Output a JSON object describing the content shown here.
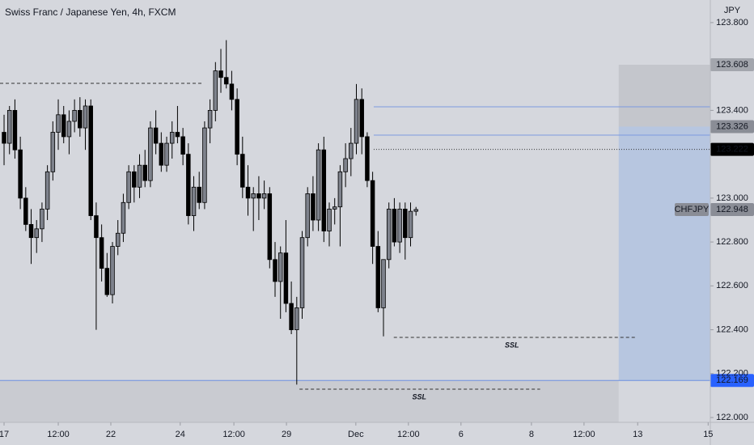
{
  "chart_data": {
    "type": "candlestick",
    "title": "Swiss Franc / Japanese Yen, 4h, FXCM",
    "y_axis_label": "JPY",
    "up_color": "#7e828c",
    "down_color": "#000000",
    "ylim": [
      121.978,
      123.903
    ],
    "yticks": [
      {
        "value": 123.8,
        "label": "123.800"
      },
      {
        "value": 123.4,
        "label": "123.400"
      },
      {
        "value": 123.0,
        "label": "123.000"
      },
      {
        "value": 122.8,
        "label": "122.800"
      },
      {
        "value": 122.6,
        "label": "122.600"
      },
      {
        "value": 122.4,
        "label": "122.400"
      },
      {
        "value": 122.2,
        "label": "122.200"
      },
      {
        "value": 122.0,
        "label": "122.000"
      }
    ],
    "xlim": [
      -0.75,
      130.3
    ],
    "xticks": [
      {
        "value": 0,
        "label": "17"
      },
      {
        "value": 10,
        "label": "12:00"
      },
      {
        "value": 19.7,
        "label": "22"
      },
      {
        "value": 32.5,
        "label": "24"
      },
      {
        "value": 42.4,
        "label": "12:00"
      },
      {
        "value": 52.1,
        "label": "29"
      },
      {
        "value": 64.9,
        "label": "Dec"
      },
      {
        "value": 74.6,
        "label": "12:00"
      },
      {
        "value": 84.3,
        "label": "6"
      },
      {
        "value": 97.3,
        "label": "8"
      },
      {
        "value": 107,
        "label": "12:00"
      },
      {
        "value": 116.9,
        "label": "13"
      },
      {
        "value": 129.9,
        "label": "15"
      }
    ],
    "candles": [
      [
        123.3,
        123.38,
        123.15,
        123.25
      ],
      [
        123.25,
        123.42,
        123.2,
        123.4
      ],
      [
        123.4,
        123.45,
        123.18,
        123.22
      ],
      [
        123.22,
        123.28,
        122.95,
        123.0
      ],
      [
        123.0,
        123.05,
        122.85,
        122.88
      ],
      [
        122.88,
        122.95,
        122.7,
        122.82
      ],
      [
        122.82,
        122.9,
        122.75,
        122.86
      ],
      [
        122.86,
        122.98,
        122.8,
        122.95
      ],
      [
        122.95,
        123.15,
        122.9,
        123.12
      ],
      [
        123.12,
        123.35,
        123.08,
        123.3
      ],
      [
        123.3,
        123.45,
        123.22,
        123.38
      ],
      [
        123.38,
        123.42,
        123.25,
        123.28
      ],
      [
        123.28,
        123.4,
        123.2,
        123.35
      ],
      [
        123.35,
        123.45,
        123.3,
        123.4
      ],
      [
        123.4,
        123.46,
        123.28,
        123.32
      ],
      [
        123.32,
        123.45,
        123.22,
        123.42
      ],
      [
        123.42,
        123.45,
        122.9,
        122.92
      ],
      [
        122.92,
        122.98,
        122.4,
        122.82
      ],
      [
        122.82,
        122.88,
        122.62,
        122.68
      ],
      [
        122.68,
        122.75,
        122.55,
        122.56
      ],
      [
        122.56,
        122.8,
        122.52,
        122.78
      ],
      [
        122.78,
        122.9,
        122.74,
        122.84
      ],
      [
        122.84,
        123.02,
        122.8,
        122.98
      ],
      [
        122.98,
        123.15,
        122.95,
        123.12
      ],
      [
        123.12,
        123.15,
        122.98,
        123.05
      ],
      [
        123.05,
        123.2,
        123.0,
        123.15
      ],
      [
        123.15,
        123.22,
        123.05,
        123.08
      ],
      [
        123.08,
        123.35,
        123.05,
        123.32
      ],
      [
        123.32,
        123.4,
        123.2,
        123.25
      ],
      [
        123.25,
        123.3,
        123.12,
        123.15
      ],
      [
        123.15,
        123.28,
        123.12,
        123.25
      ],
      [
        123.25,
        123.35,
        123.18,
        123.3
      ],
      [
        123.3,
        123.42,
        123.25,
        123.28
      ],
      [
        123.28,
        123.32,
        123.15,
        123.2
      ],
      [
        123.2,
        123.25,
        122.88,
        122.92
      ],
      [
        122.92,
        123.1,
        122.85,
        123.05
      ],
      [
        123.05,
        123.12,
        122.95,
        122.98
      ],
      [
        122.98,
        123.35,
        122.95,
        123.32
      ],
      [
        123.32,
        123.45,
        123.25,
        123.4
      ],
      [
        123.4,
        123.62,
        123.35,
        123.58
      ],
      [
        123.58,
        123.68,
        123.48,
        123.55
      ],
      [
        123.55,
        123.72,
        123.5,
        123.52
      ],
      [
        123.52,
        123.58,
        123.4,
        123.45
      ],
      [
        123.45,
        123.5,
        123.15,
        123.2
      ],
      [
        123.2,
        123.28,
        123.0,
        123.05
      ],
      [
        123.05,
        123.15,
        122.92,
        123.0
      ],
      [
        123.0,
        123.05,
        122.85,
        123.02
      ],
      [
        123.02,
        123.1,
        122.9,
        123.0
      ],
      [
        123.0,
        123.08,
        122.95,
        123.02
      ],
      [
        123.02,
        123.05,
        122.68,
        122.72
      ],
      [
        122.72,
        122.8,
        122.55,
        122.62
      ],
      [
        122.62,
        122.78,
        122.45,
        122.75
      ],
      [
        122.75,
        122.9,
        122.48,
        122.52
      ],
      [
        122.52,
        122.62,
        122.38,
        122.4
      ],
      [
        122.4,
        122.55,
        122.15,
        122.5
      ],
      [
        122.5,
        122.85,
        122.45,
        122.82
      ],
      [
        122.82,
        123.05,
        122.78,
        123.02
      ],
      [
        123.02,
        123.1,
        122.85,
        122.9
      ],
      [
        122.9,
        123.25,
        122.85,
        123.22
      ],
      [
        123.22,
        123.28,
        122.8,
        122.85
      ],
      [
        122.85,
        122.98,
        122.78,
        122.95
      ],
      [
        122.95,
        123.0,
        122.88,
        122.96
      ],
      [
        122.96,
        123.15,
        122.78,
        123.12
      ],
      [
        123.12,
        123.25,
        123.05,
        123.18
      ],
      [
        123.18,
        123.32,
        123.1,
        123.25
      ],
      [
        123.25,
        123.52,
        123.2,
        123.45
      ],
      [
        123.45,
        123.5,
        123.2,
        123.28
      ],
      [
        123.28,
        123.3,
        123.05,
        123.08
      ],
      [
        123.08,
        123.12,
        122.7,
        122.78
      ],
      [
        122.78,
        122.85,
        122.48,
        122.5
      ],
      [
        122.5,
        122.72,
        122.37,
        122.72
      ],
      [
        122.72,
        122.98,
        122.68,
        122.95
      ],
      [
        122.95,
        123.0,
        122.78,
        122.8
      ],
      [
        122.8,
        122.98,
        122.75,
        122.95
      ],
      [
        122.95,
        122.98,
        122.72,
        122.82
      ],
      [
        122.82,
        122.98,
        122.78,
        122.94
      ],
      [
        122.94,
        122.96,
        122.92,
        122.948
      ]
    ],
    "zones": [
      {
        "from": 113.4,
        "top": 123.608,
        "bottom": 123.326,
        "color": "#c4c6cc"
      },
      {
        "from": 113.4,
        "top": 123.326,
        "bottom": 122.169,
        "color": "#b7c6e0"
      },
      {
        "to": 113.4,
        "top": 122.169,
        "bottom": 121.978,
        "color": "#c9cbd1"
      }
    ],
    "lines": [
      {
        "value": 123.523,
        "from": -0.75,
        "to": 36.6,
        "color": "#333333",
        "style": "dashed"
      },
      {
        "value": 123.416,
        "from": 68.2,
        "color": "#7d9be0",
        "style": "solid"
      },
      {
        "value": 123.287,
        "from": 68.2,
        "color": "#7d9be0",
        "style": "solid"
      },
      {
        "value": 123.222,
        "from": 68.2,
        "color": "#333333",
        "style": "dotted"
      },
      {
        "value": 122.169,
        "from": -0.75,
        "color": "#6d8fe0",
        "style": "solid"
      },
      {
        "value": 122.365,
        "from": 71.9,
        "to": 116.4,
        "color": "#333333",
        "style": "dashed",
        "label": "SSL",
        "label_x": 93.7
      },
      {
        "value": 122.129,
        "from": 54.5,
        "to": 98.9,
        "color": "#333333",
        "style": "dashed",
        "label": "SSL",
        "label_x": 76.6
      }
    ],
    "price_labels": [
      {
        "value": 123.608,
        "label": "123.608",
        "bg": "#a3a6ad",
        "fg": "#131722"
      },
      {
        "value": 123.326,
        "label": "123.326",
        "bg": "#8a8d96",
        "fg": "#ffffff"
      },
      {
        "value": 123.222,
        "label": "123.222",
        "bg": "#000000",
        "fg": "#ffffff"
      },
      {
        "value": 122.948,
        "label": "122.948",
        "bg": "#8a8d96",
        "fg": "#ffffff",
        "name": "CHFJPY"
      },
      {
        "value": 122.169,
        "label": "122.169",
        "bg": "#2962ff",
        "fg": "#ffffff"
      }
    ]
  }
}
